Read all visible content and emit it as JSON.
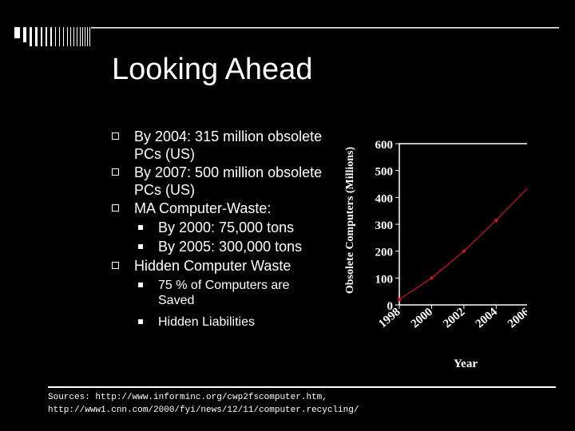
{
  "slide": {
    "title": "Looking Ahead",
    "bullets": [
      {
        "text": "By 2004: 315 million obsolete PCs (US)"
      },
      {
        "text": "By 2007: 500 million obsolete PCs (US)"
      },
      {
        "text": "MA Computer-Waste:"
      },
      {
        "text": "By 2000: 75,000 tons"
      },
      {
        "text": "By 2005: 300,000 tons"
      },
      {
        "text": "Hidden Computer Waste"
      },
      {
        "text": "75 % of Computers are Saved"
      },
      {
        "text": "Hidden Liabilities"
      }
    ],
    "sources_line1": "Sources: http://www.informinc.org/cwp2fscomputer.htm,",
    "sources_line2": "http://www1.cnn.com/2000/fyi/news/12/11/computer.recycling/"
  },
  "colors": {
    "background": "#000000",
    "text": "#ffffff",
    "series": "#d0161e"
  },
  "chart_data": {
    "type": "line",
    "xlabel": "Year",
    "ylabel": "Obsolete Computers (Millions)",
    "x_tick_labels": [
      "1998",
      "2000",
      "2002",
      "2004",
      "2006"
    ],
    "y_tick_labels": [
      "0",
      "100",
      "200",
      "300",
      "400",
      "500",
      "600"
    ],
    "xlim": [
      1998,
      2007
    ],
    "ylim": [
      0,
      600
    ],
    "grid": false,
    "x": [
      1998,
      2000,
      2002,
      2004,
      2007
    ],
    "values": [
      20,
      100,
      200,
      315,
      500
    ]
  }
}
